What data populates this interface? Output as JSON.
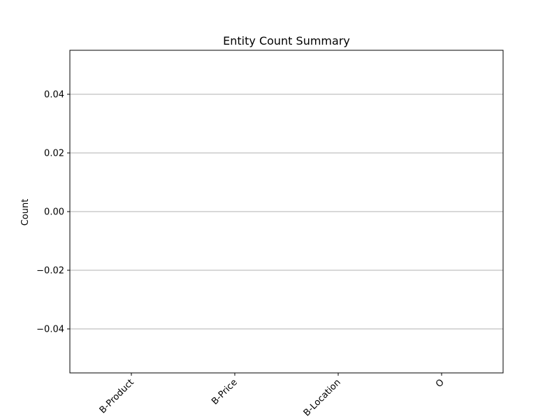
{
  "chart_data": {
    "type": "bar",
    "title": "Entity Count Summary",
    "xlabel": "",
    "ylabel": "Count",
    "categories": [
      "B-Product",
      "B-Price",
      "B-Location",
      "O"
    ],
    "values": [
      0,
      0,
      0,
      0
    ],
    "ylim": [
      -0.055,
      0.055
    ],
    "yticks": [
      -0.04,
      -0.02,
      0.0,
      0.02,
      0.04
    ],
    "ytick_labels": [
      "−0.04",
      "−0.02",
      "0.00",
      "0.02",
      "0.04"
    ],
    "grid": "y",
    "legend": "none",
    "xtick_rotation": 45,
    "colors": {
      "grid": "#b0b0b0",
      "axes": "#000000",
      "bar": "#1f77b4"
    }
  }
}
